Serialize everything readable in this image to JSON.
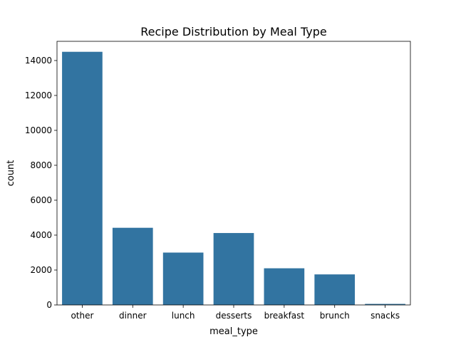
{
  "chart_data": {
    "type": "bar",
    "title": "Recipe Distribution by Meal Type",
    "xlabel": "meal_type",
    "ylabel": "count",
    "categories": [
      "other",
      "dinner",
      "lunch",
      "desserts",
      "breakfast",
      "brunch",
      "snacks"
    ],
    "values": [
      14500,
      4420,
      3000,
      4120,
      2100,
      1750,
      60
    ],
    "ylim": [
      0,
      15100
    ],
    "yticks": [
      0,
      2000,
      4000,
      6000,
      8000,
      10000,
      12000,
      14000
    ],
    "grid": false,
    "bar_color": "#3274a1"
  }
}
